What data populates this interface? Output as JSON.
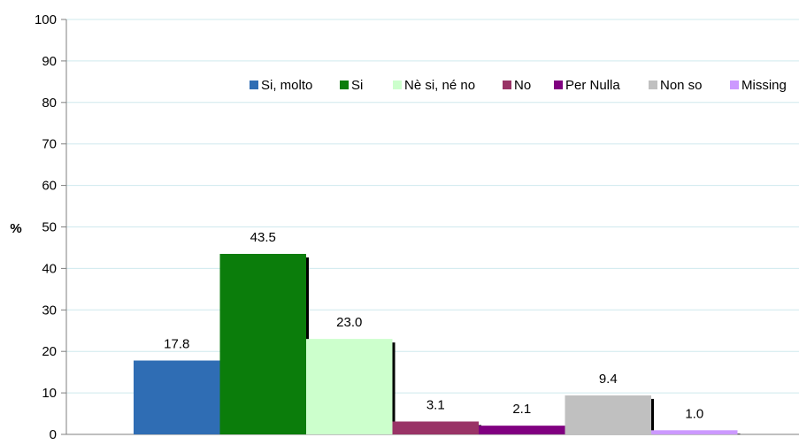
{
  "chart_data": {
    "type": "bar",
    "title": "",
    "xlabel": "",
    "ylabel": "%",
    "ylim": [
      0,
      100
    ],
    "yticks": [
      0,
      10,
      20,
      30,
      40,
      50,
      60,
      70,
      80,
      90,
      100
    ],
    "grid": true,
    "legend_position": "top-right",
    "series": [
      {
        "name": "Si, molto",
        "value": 17.8,
        "label": "17.8",
        "color": "#2f6db4"
      },
      {
        "name": "Si",
        "value": 43.5,
        "label": "43.5",
        "color": "#0b7d0b"
      },
      {
        "name": "Nè si, né no",
        "value": 23.0,
        "label": "23.0",
        "color": "#ccffcc"
      },
      {
        "name": "No",
        "value": 3.1,
        "label": "3.1",
        "color": "#993366"
      },
      {
        "name": "Per Nulla",
        "value": 2.1,
        "label": "2.1",
        "color": "#800080"
      },
      {
        "name": "Non so",
        "value": 9.4,
        "label": "9.4",
        "color": "#c0c0c0"
      },
      {
        "name": "Missing",
        "value": 1.0,
        "label": "1.0",
        "color": "#cc99ff"
      }
    ]
  }
}
